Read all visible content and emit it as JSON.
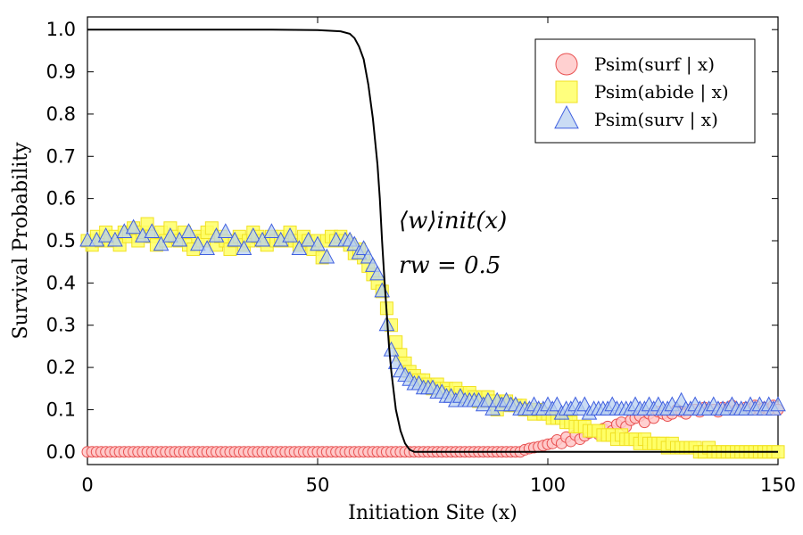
{
  "chart_data": {
    "type": "scatter",
    "title": "",
    "xlabel": "Initiation Site (x)",
    "ylabel": "Survival Probability",
    "xlim": [
      0,
      150
    ],
    "ylim": [
      -0.03,
      1.03
    ],
    "x_ticks": [
      0,
      50,
      100,
      150
    ],
    "y_ticks": [
      0.0,
      0.1,
      0.2,
      0.3,
      0.4,
      0.5,
      0.6,
      0.7,
      0.8,
      0.9,
      1.0
    ],
    "grid": false,
    "legend_position": "top-right",
    "annotations": [
      "⟨w⟩init(x)",
      "rw = 0.5"
    ],
    "curve": {
      "name": "⟨w⟩init(x)",
      "color": "#000000",
      "x": [
        0,
        40,
        50,
        55,
        57,
        58,
        59,
        60,
        61,
        62,
        63,
        63.5,
        64,
        64.5,
        65,
        65.5,
        66,
        67,
        68,
        69,
        70,
        71,
        72,
        80,
        150
      ],
      "y": [
        1.0,
        1.0,
        0.999,
        0.996,
        0.99,
        0.98,
        0.96,
        0.93,
        0.87,
        0.79,
        0.68,
        0.6,
        0.5,
        0.41,
        0.33,
        0.25,
        0.19,
        0.1,
        0.05,
        0.02,
        0.005,
        0.0,
        0.0,
        0.0,
        0.0
      ]
    },
    "series": [
      {
        "name": "P_sim(surf | x)",
        "legend_label": "Psim(surf | x)",
        "marker": "circle",
        "fill": "#ffc8c8",
        "stroke": "#e85050",
        "x": [
          0,
          1,
          2,
          3,
          4,
          5,
          6,
          7,
          8,
          9,
          10,
          11,
          12,
          13,
          14,
          15,
          16,
          17,
          18,
          19,
          20,
          21,
          22,
          23,
          24,
          25,
          26,
          27,
          28,
          29,
          30,
          31,
          32,
          33,
          34,
          35,
          36,
          37,
          38,
          39,
          40,
          41,
          42,
          43,
          44,
          45,
          46,
          47,
          48,
          49,
          50,
          51,
          52,
          53,
          54,
          55,
          56,
          57,
          58,
          59,
          60,
          61,
          62,
          63,
          64,
          65,
          66,
          67,
          68,
          69,
          70,
          71,
          72,
          73,
          74,
          75,
          76,
          77,
          78,
          79,
          80,
          81,
          82,
          83,
          84,
          85,
          86,
          87,
          88,
          89,
          90,
          91,
          92,
          93,
          94,
          95,
          96,
          97,
          98,
          99,
          100,
          101,
          102,
          103,
          104,
          105,
          106,
          107,
          108,
          109,
          110,
          111,
          112,
          113,
          114,
          115,
          116,
          117,
          118,
          119,
          120,
          121,
          122,
          123,
          124,
          125,
          126,
          127,
          128,
          129,
          130,
          131,
          132,
          133,
          134,
          135,
          136,
          137,
          138,
          139,
          140,
          141,
          142,
          143,
          144,
          145,
          146,
          147,
          148,
          149,
          150
        ],
        "values": [
          0.0,
          0.0,
          0.0,
          0.0,
          0.0,
          0.0,
          0.0,
          0.0,
          0.0,
          0.0,
          0.0,
          0.0,
          0.0,
          0.0,
          0.0,
          0.0,
          0.0,
          0.0,
          0.0,
          0.0,
          0.0,
          0.0,
          0.0,
          0.0,
          0.0,
          0.0,
          0.0,
          0.0,
          0.0,
          0.0,
          0.0,
          0.0,
          0.0,
          0.0,
          0.0,
          0.0,
          0.0,
          0.0,
          0.0,
          0.0,
          0.0,
          0.0,
          0.0,
          0.0,
          0.0,
          0.0,
          0.0,
          0.0,
          0.0,
          0.0,
          0.0,
          0.0,
          0.0,
          0.0,
          0.0,
          0.0,
          0.0,
          0.0,
          0.0,
          0.0,
          0.0,
          0.0,
          0.0,
          0.0,
          0.0,
          0.0,
          0.0,
          0.0,
          0.0,
          0.0,
          0.0,
          0.0,
          0.0,
          0.0,
          0.0,
          0.0,
          0.0,
          0.0,
          0.0,
          0.0,
          0.0,
          0.0,
          0.0,
          0.0,
          0.0,
          0.0,
          0.0,
          0.0,
          0.0,
          0.0,
          0.0,
          0.0,
          0.0,
          0.0,
          0.0,
          0.005,
          0.008,
          0.01,
          0.012,
          0.015,
          0.018,
          0.02,
          0.028,
          0.02,
          0.035,
          0.025,
          0.04,
          0.03,
          0.038,
          0.045,
          0.05,
          0.042,
          0.055,
          0.06,
          0.05,
          0.065,
          0.07,
          0.06,
          0.075,
          0.08,
          0.085,
          0.07,
          0.09,
          0.08,
          0.095,
          0.09,
          0.085,
          0.09,
          0.1,
          0.095,
          0.09,
          0.1,
          0.1,
          0.095,
          0.105,
          0.1,
          0.1,
          0.095,
          0.105,
          0.1,
          0.11,
          0.1,
          0.1,
          0.105,
          0.1,
          0.11,
          0.1,
          0.105,
          0.1,
          0.11,
          0.1
        ]
      },
      {
        "name": "P_sim(abide | x)",
        "legend_label": "Psim(abide | x)",
        "marker": "square",
        "fill": "#ffff66",
        "stroke": "#f0e020",
        "x": [
          0,
          1,
          2,
          3,
          4,
          5,
          6,
          7,
          8,
          9,
          10,
          11,
          12,
          13,
          14,
          15,
          16,
          17,
          18,
          19,
          20,
          21,
          22,
          23,
          24,
          25,
          26,
          27,
          28,
          29,
          30,
          31,
          32,
          33,
          34,
          35,
          36,
          37,
          38,
          39,
          40,
          41,
          42,
          43,
          44,
          45,
          46,
          47,
          48,
          49,
          50,
          51,
          52,
          53,
          54,
          55,
          56,
          57,
          58,
          59,
          60,
          61,
          62,
          63,
          64,
          65,
          66,
          67,
          68,
          69,
          70,
          71,
          72,
          73,
          74,
          75,
          76,
          77,
          78,
          79,
          80,
          81,
          82,
          83,
          84,
          85,
          86,
          87,
          88,
          89,
          90,
          91,
          92,
          93,
          94,
          95,
          96,
          97,
          98,
          99,
          100,
          101,
          102,
          103,
          104,
          105,
          106,
          107,
          108,
          109,
          110,
          111,
          112,
          113,
          114,
          115,
          116,
          117,
          118,
          119,
          120,
          121,
          122,
          123,
          124,
          125,
          126,
          127,
          128,
          129,
          130,
          131,
          132,
          133,
          134,
          135,
          136,
          137,
          138,
          139,
          140,
          141,
          142,
          143,
          144,
          145,
          146,
          147,
          148,
          149,
          150
        ],
        "values": [
          0.5,
          0.49,
          0.51,
          0.5,
          0.52,
          0.5,
          0.51,
          0.49,
          0.52,
          0.51,
          0.53,
          0.5,
          0.52,
          0.54,
          0.51,
          0.49,
          0.52,
          0.5,
          0.53,
          0.51,
          0.5,
          0.52,
          0.49,
          0.48,
          0.51,
          0.5,
          0.52,
          0.53,
          0.49,
          0.51,
          0.5,
          0.48,
          0.5,
          0.51,
          0.49,
          0.5,
          0.52,
          0.51,
          0.5,
          0.49,
          0.51,
          0.5,
          0.51,
          0.5,
          0.52,
          0.5,
          0.49,
          0.51,
          0.5,
          0.48,
          0.5,
          0.46,
          0.5,
          0.51,
          0.5,
          0.51,
          0.5,
          0.49,
          0.47,
          0.48,
          0.46,
          0.44,
          0.42,
          0.4,
          0.38,
          0.34,
          0.3,
          0.26,
          0.23,
          0.21,
          0.19,
          0.18,
          0.17,
          0.17,
          0.16,
          0.15,
          0.16,
          0.15,
          0.15,
          0.14,
          0.15,
          0.14,
          0.13,
          0.14,
          0.13,
          0.12,
          0.13,
          0.13,
          0.12,
          0.1,
          0.12,
          0.12,
          0.11,
          0.11,
          0.11,
          0.1,
          0.1,
          0.09,
          0.1,
          0.09,
          0.09,
          0.08,
          0.08,
          0.08,
          0.07,
          0.07,
          0.06,
          0.06,
          0.06,
          0.05,
          0.05,
          0.05,
          0.04,
          0.04,
          0.04,
          0.03,
          0.04,
          0.03,
          0.03,
          0.03,
          0.02,
          0.03,
          0.02,
          0.02,
          0.02,
          0.02,
          0.01,
          0.02,
          0.01,
          0.01,
          0.01,
          0.01,
          0.01,
          0.0,
          0.0,
          0.01,
          0.0,
          0.0,
          0.0,
          0.0,
          0.0,
          0.0,
          0.0,
          0.0,
          0.0,
          0.0,
          0.0,
          0.0,
          0.0,
          0.0,
          0.0
        ]
      },
      {
        "name": "P_sim(surv | x)",
        "legend_label": "Psim(surv | x)",
        "marker": "triangle",
        "fill": "#b8d0f0",
        "stroke": "#4060e0",
        "x": [
          0,
          2,
          4,
          6,
          8,
          10,
          12,
          14,
          16,
          18,
          20,
          22,
          24,
          26,
          28,
          30,
          32,
          34,
          36,
          38,
          40,
          42,
          44,
          46,
          48,
          50,
          52,
          54,
          56,
          57,
          58,
          59,
          60,
          61,
          62,
          63,
          64,
          65,
          66,
          67,
          68,
          69,
          70,
          71,
          72,
          73,
          74,
          75,
          76,
          77,
          78,
          79,
          80,
          81,
          82,
          83,
          84,
          85,
          86,
          87,
          88,
          89,
          90,
          91,
          92,
          93,
          94,
          95,
          96,
          97,
          98,
          99,
          100,
          101,
          102,
          103,
          104,
          105,
          106,
          107,
          108,
          109,
          110,
          111,
          112,
          113,
          114,
          115,
          116,
          117,
          118,
          119,
          120,
          121,
          122,
          123,
          124,
          125,
          126,
          127,
          128,
          129,
          130,
          131,
          132,
          133,
          134,
          135,
          136,
          137,
          138,
          139,
          140,
          141,
          142,
          143,
          144,
          145,
          146,
          147,
          148,
          149,
          150
        ],
        "values": [
          0.5,
          0.5,
          0.51,
          0.5,
          0.52,
          0.53,
          0.51,
          0.52,
          0.49,
          0.51,
          0.5,
          0.52,
          0.49,
          0.48,
          0.51,
          0.52,
          0.5,
          0.48,
          0.51,
          0.5,
          0.52,
          0.5,
          0.51,
          0.48,
          0.5,
          0.49,
          0.46,
          0.5,
          0.5,
          0.5,
          0.49,
          0.47,
          0.48,
          0.46,
          0.44,
          0.42,
          0.38,
          0.3,
          0.24,
          0.21,
          0.19,
          0.18,
          0.17,
          0.16,
          0.16,
          0.15,
          0.15,
          0.15,
          0.14,
          0.14,
          0.13,
          0.13,
          0.12,
          0.13,
          0.12,
          0.12,
          0.12,
          0.12,
          0.11,
          0.12,
          0.1,
          0.12,
          0.11,
          0.12,
          0.11,
          0.11,
          0.1,
          0.1,
          0.1,
          0.11,
          0.1,
          0.1,
          0.11,
          0.1,
          0.11,
          0.09,
          0.1,
          0.1,
          0.11,
          0.1,
          0.11,
          0.09,
          0.1,
          0.1,
          0.1,
          0.1,
          0.11,
          0.1,
          0.1,
          0.1,
          0.1,
          0.11,
          0.1,
          0.1,
          0.11,
          0.1,
          0.11,
          0.1,
          0.1,
          0.11,
          0.1,
          0.12,
          0.1,
          0.1,
          0.11,
          0.1,
          0.1,
          0.1,
          0.11,
          0.1,
          0.1,
          0.1,
          0.11,
          0.1,
          0.1,
          0.1,
          0.11,
          0.1,
          0.11,
          0.1,
          0.11,
          0.1,
          0.11
        ]
      }
    ]
  }
}
